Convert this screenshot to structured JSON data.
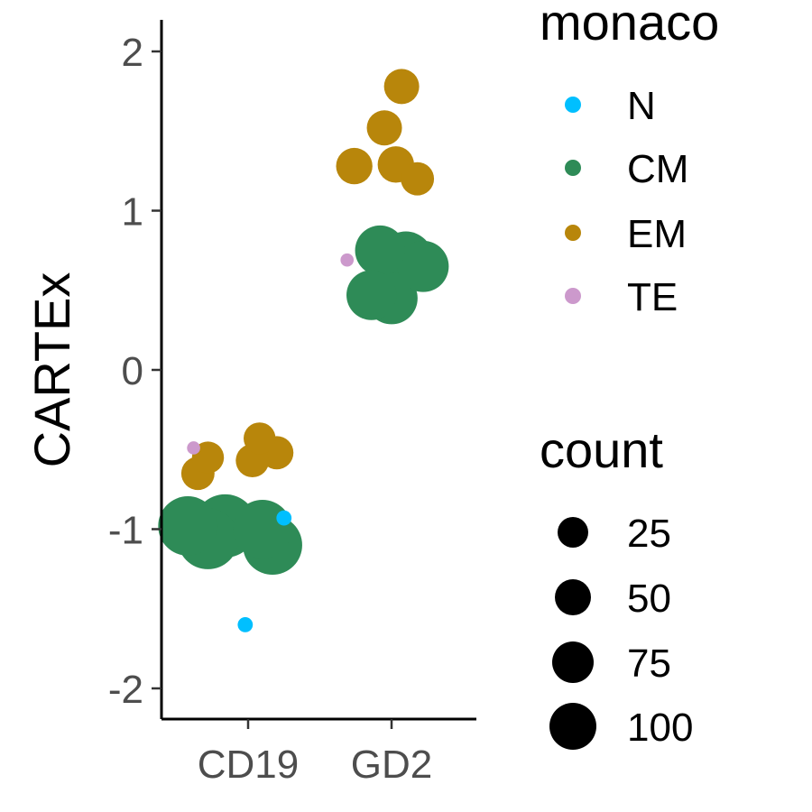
{
  "chart_data": {
    "type": "scatter",
    "ylabel": "CARTEx",
    "xlabel": "",
    "categories": [
      "CD19",
      "GD2"
    ],
    "ylim": [
      -2.2,
      2.2
    ],
    "yticks": [
      -2,
      -1,
      0,
      1,
      2
    ],
    "grid": false,
    "legend_placement": "right",
    "colors": {
      "N": "#00bfff",
      "CM": "#2e8b57",
      "EM": "#b8860b",
      "TE": "#cc99cc"
    },
    "legends": {
      "color": {
        "title": "monaco",
        "entries": [
          "N",
          "CM",
          "EM",
          "TE"
        ]
      },
      "size": {
        "title": "count",
        "entries": [
          25,
          50,
          75,
          100
        ]
      }
    },
    "points": [
      {
        "category": "CD19",
        "group": "N",
        "x": 1.25,
        "y": -0.93,
        "count": 3
      },
      {
        "category": "CD19",
        "group": "N",
        "x": 0.98,
        "y": -1.6,
        "count": 3
      },
      {
        "category": "CD19",
        "group": "TE",
        "x": 0.62,
        "y": -0.49,
        "count": 2
      },
      {
        "category": "CD19",
        "group": "EM",
        "x": 0.72,
        "y": -0.55,
        "count": 20
      },
      {
        "category": "CD19",
        "group": "EM",
        "x": 0.65,
        "y": -0.65,
        "count": 22
      },
      {
        "category": "CD19",
        "group": "EM",
        "x": 1.08,
        "y": -0.43,
        "count": 20
      },
      {
        "category": "CD19",
        "group": "EM",
        "x": 1.2,
        "y": -0.52,
        "count": 22
      },
      {
        "category": "CD19",
        "group": "EM",
        "x": 1.03,
        "y": -0.57,
        "count": 22
      },
      {
        "category": "CD19",
        "group": "CM",
        "x": 0.58,
        "y": -0.98,
        "count": 80
      },
      {
        "category": "CD19",
        "group": "CM",
        "x": 0.84,
        "y": -0.98,
        "count": 92
      },
      {
        "category": "CD19",
        "group": "CM",
        "x": 0.72,
        "y": -1.06,
        "count": 85
      },
      {
        "category": "CD19",
        "group": "CM",
        "x": 1.1,
        "y": -1.0,
        "count": 78
      },
      {
        "category": "CD19",
        "group": "CM",
        "x": 1.17,
        "y": -1.1,
        "count": 80
      },
      {
        "category": "GD2",
        "group": "TE",
        "x": 1.69,
        "y": 0.69,
        "count": 2
      },
      {
        "category": "GD2",
        "group": "EM",
        "x": 2.07,
        "y": 1.78,
        "count": 25
      },
      {
        "category": "GD2",
        "group": "EM",
        "x": 1.95,
        "y": 1.52,
        "count": 25
      },
      {
        "category": "GD2",
        "group": "EM",
        "x": 1.74,
        "y": 1.28,
        "count": 27
      },
      {
        "category": "GD2",
        "group": "EM",
        "x": 2.03,
        "y": 1.29,
        "count": 27
      },
      {
        "category": "GD2",
        "group": "EM",
        "x": 2.18,
        "y": 1.2,
        "count": 22
      },
      {
        "category": "GD2",
        "group": "CM",
        "x": 1.92,
        "y": 0.75,
        "count": 55
      },
      {
        "category": "GD2",
        "group": "CM",
        "x": 2.1,
        "y": 0.7,
        "count": 65
      },
      {
        "category": "GD2",
        "group": "CM",
        "x": 2.22,
        "y": 0.65,
        "count": 58
      },
      {
        "category": "GD2",
        "group": "CM",
        "x": 1.86,
        "y": 0.47,
        "count": 55
      },
      {
        "category": "GD2",
        "group": "CM",
        "x": 2.0,
        "y": 0.45,
        "count": 60
      }
    ]
  }
}
